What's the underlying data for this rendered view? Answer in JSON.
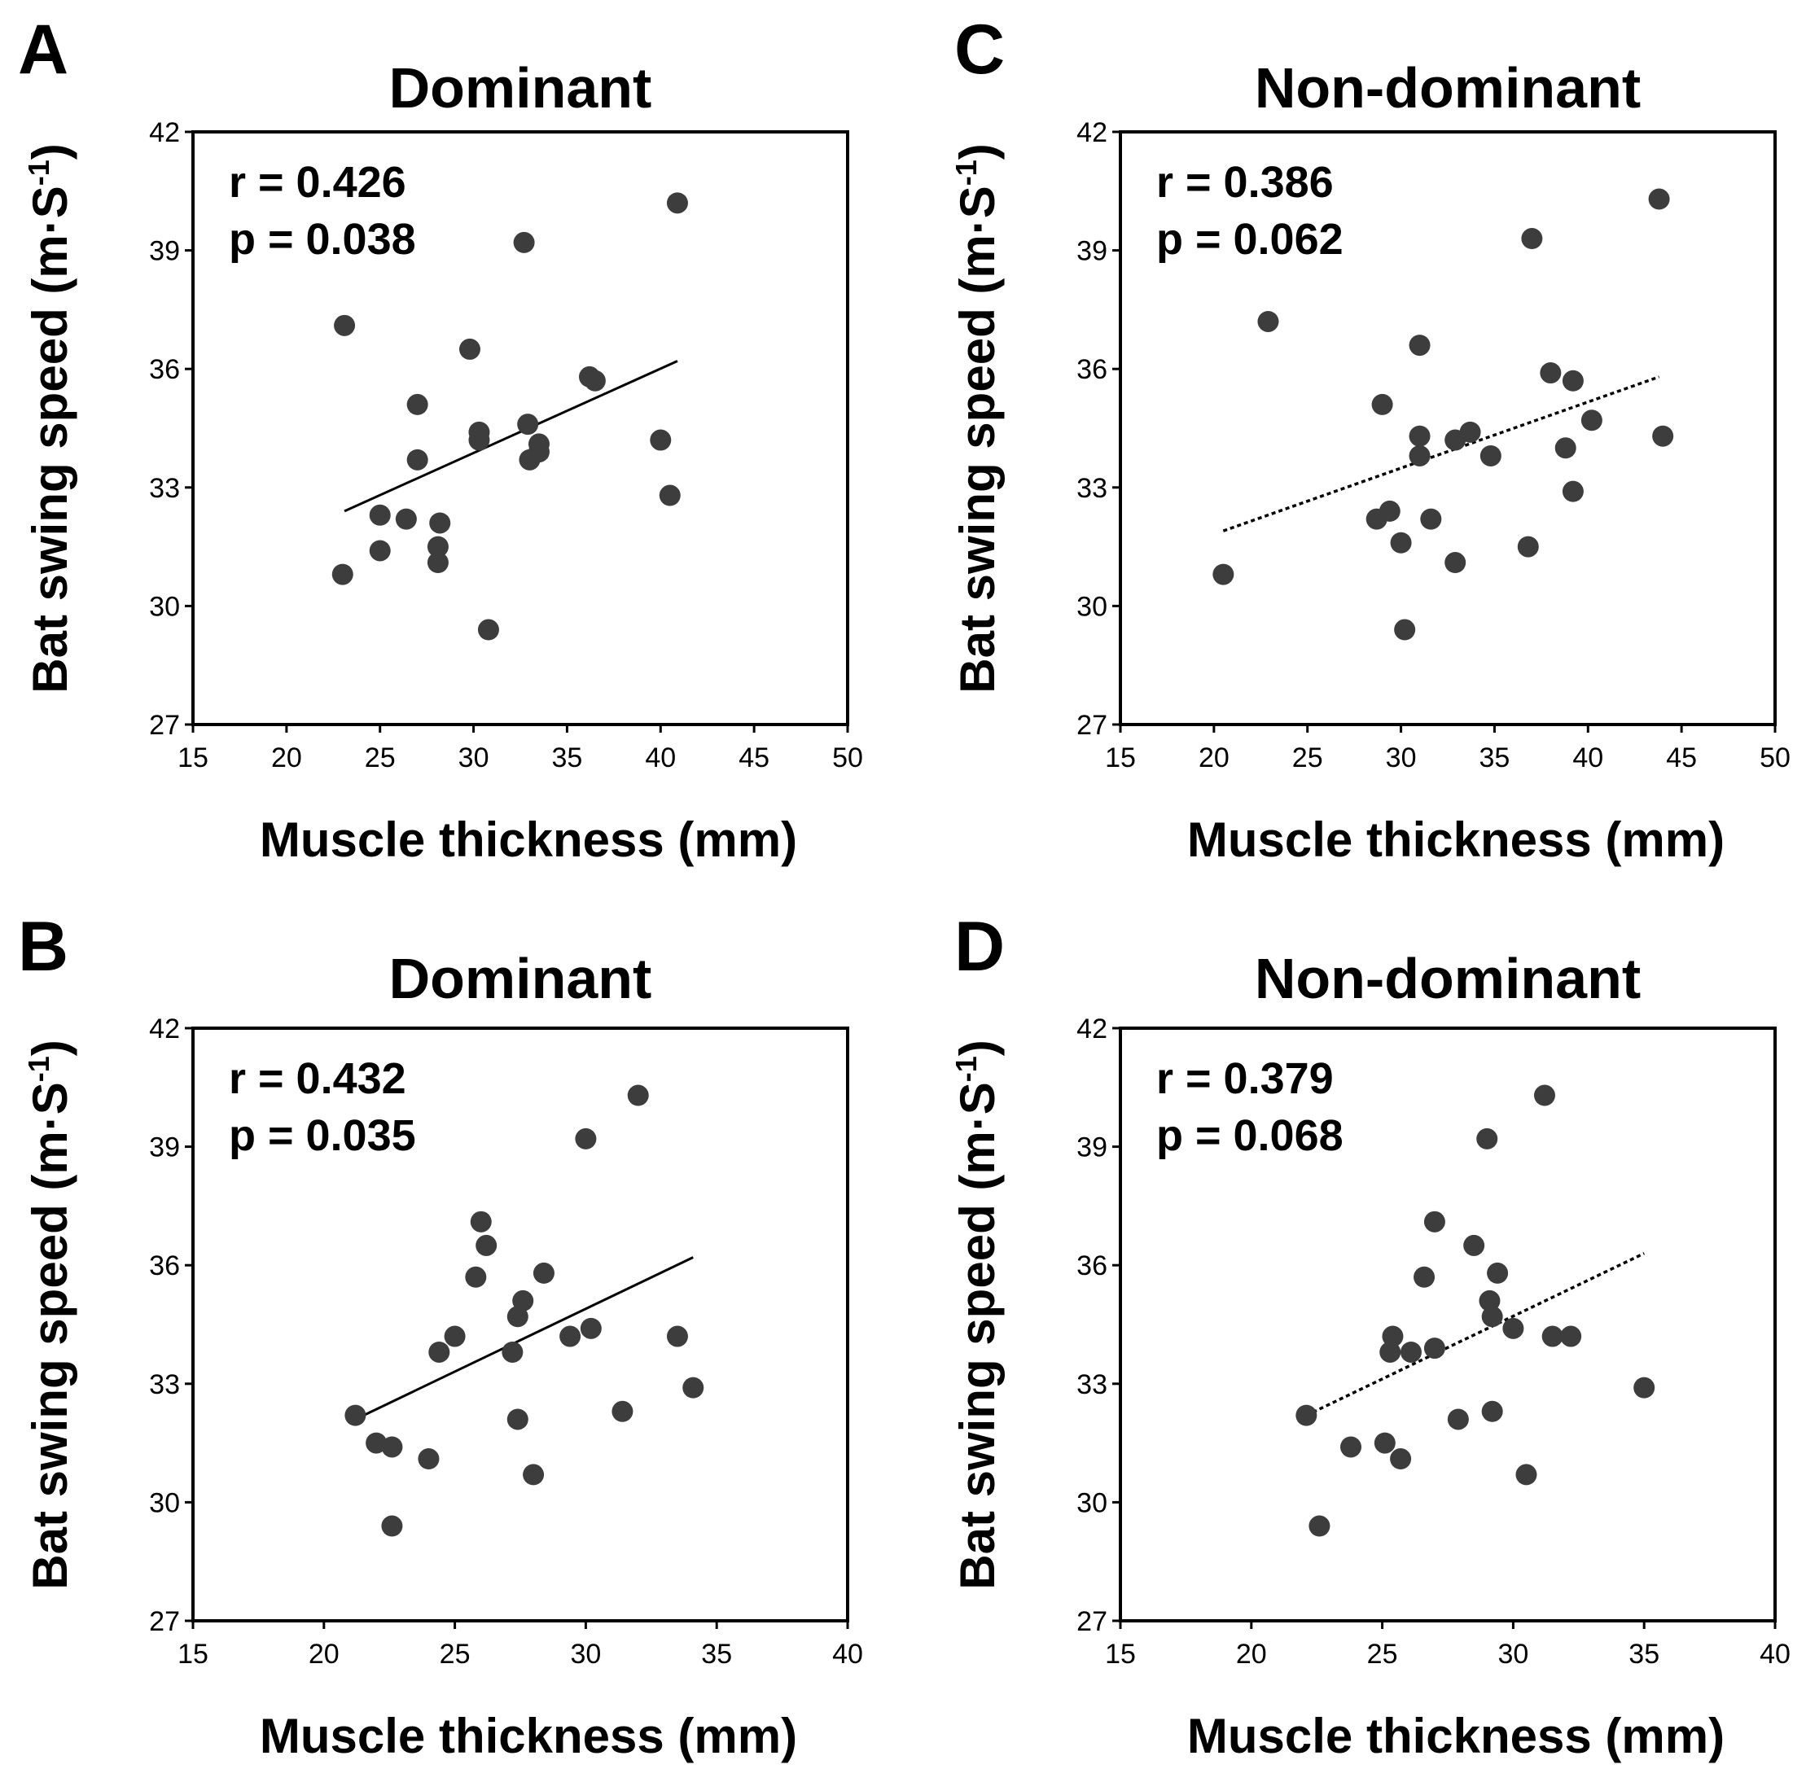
{
  "chart_data": [
    {
      "type": "scatter",
      "panel_label": "A",
      "title": "Dominant",
      "xlabel": "Muscle thickness (mm)",
      "ylabel": "Bat swing speed (m·S-1)",
      "ylabel_main": "Bat swing speed (m",
      "ylabel_mid": "·S",
      "ylabel_sup": "-1",
      "ylabel_close": ")",
      "xlim": [
        15,
        50
      ],
      "ylim": [
        27,
        42
      ],
      "xticks": [
        "15",
        "20",
        "25",
        "30",
        "35",
        "40",
        "45",
        "50"
      ],
      "yticks": [
        "27",
        "30",
        "33",
        "36",
        "39",
        "42"
      ],
      "stats": {
        "r": "r = 0.426",
        "p": "p = 0.038"
      },
      "trendline": {
        "style": "solid",
        "x": [
          23.1,
          40.9
        ],
        "y": [
          32.4,
          36.2
        ]
      },
      "points": [
        {
          "x": 40.9,
          "y": 40.2
        },
        {
          "x": 32.7,
          "y": 39.2
        },
        {
          "x": 23.1,
          "y": 37.1
        },
        {
          "x": 29.8,
          "y": 36.5
        },
        {
          "x": 36.2,
          "y": 35.8
        },
        {
          "x": 36.5,
          "y": 35.7
        },
        {
          "x": 27.0,
          "y": 35.1
        },
        {
          "x": 32.9,
          "y": 34.6
        },
        {
          "x": 30.3,
          "y": 34.4
        },
        {
          "x": 30.3,
          "y": 34.2
        },
        {
          "x": 40.0,
          "y": 34.2
        },
        {
          "x": 33.5,
          "y": 34.1
        },
        {
          "x": 33.5,
          "y": 33.9
        },
        {
          "x": 27.0,
          "y": 33.7
        },
        {
          "x": 33.0,
          "y": 33.7
        },
        {
          "x": 40.5,
          "y": 32.8
        },
        {
          "x": 25.0,
          "y": 32.3
        },
        {
          "x": 26.4,
          "y": 32.2
        },
        {
          "x": 28.2,
          "y": 32.1
        },
        {
          "x": 28.1,
          "y": 31.5
        },
        {
          "x": 25.0,
          "y": 31.4
        },
        {
          "x": 28.1,
          "y": 31.1
        },
        {
          "x": 23.0,
          "y": 30.8
        },
        {
          "x": 30.8,
          "y": 29.4
        }
      ]
    },
    {
      "type": "scatter",
      "panel_label": "B",
      "title": "Dominant",
      "xlabel": "Muscle thickness (mm)",
      "ylabel": "Bat swing speed (m·S-1)",
      "ylabel_main": "Bat swing speed (m",
      "ylabel_mid": "·S",
      "ylabel_sup": "-1",
      "ylabel_close": ")",
      "xlim": [
        15,
        40
      ],
      "ylim": [
        27,
        42
      ],
      "xticks": [
        "15",
        "20",
        "25",
        "30",
        "35",
        "40"
      ],
      "yticks": [
        "27",
        "30",
        "33",
        "36",
        "39",
        "42"
      ],
      "stats": {
        "r": "r = 0.432",
        "p": "p = 0.035"
      },
      "trendline": {
        "style": "solid",
        "x": [
          21.2,
          34.1
        ],
        "y": [
          32.1,
          36.2
        ]
      },
      "points": [
        {
          "x": 32.0,
          "y": 40.3
        },
        {
          "x": 30.0,
          "y": 39.2
        },
        {
          "x": 26.0,
          "y": 37.1
        },
        {
          "x": 26.2,
          "y": 36.5
        },
        {
          "x": 25.8,
          "y": 35.7
        },
        {
          "x": 28.4,
          "y": 35.8
        },
        {
          "x": 27.6,
          "y": 35.1
        },
        {
          "x": 27.4,
          "y": 34.7
        },
        {
          "x": 30.2,
          "y": 34.4
        },
        {
          "x": 25.0,
          "y": 34.2
        },
        {
          "x": 29.4,
          "y": 34.2
        },
        {
          "x": 33.5,
          "y": 34.2
        },
        {
          "x": 24.4,
          "y": 33.8
        },
        {
          "x": 27.2,
          "y": 33.8
        },
        {
          "x": 34.1,
          "y": 32.9
        },
        {
          "x": 31.4,
          "y": 32.3
        },
        {
          "x": 21.2,
          "y": 32.2
        },
        {
          "x": 27.4,
          "y": 32.1
        },
        {
          "x": 22.0,
          "y": 31.5
        },
        {
          "x": 22.6,
          "y": 31.4
        },
        {
          "x": 24.0,
          "y": 31.1
        },
        {
          "x": 28.0,
          "y": 30.7
        },
        {
          "x": 22.6,
          "y": 29.4
        }
      ]
    },
    {
      "type": "scatter",
      "panel_label": "C",
      "title": "Non-dominant",
      "xlabel": "Muscle thickness (mm)",
      "ylabel": "Bat swing speed (m·S-1)",
      "ylabel_main": "Bat swing speed (m",
      "ylabel_mid": "·S",
      "ylabel_sup": "-1",
      "ylabel_close": ")",
      "xlim": [
        15,
        50
      ],
      "ylim": [
        27,
        42
      ],
      "xticks": [
        "15",
        "20",
        "25",
        "30",
        "35",
        "40",
        "45",
        "50"
      ],
      "yticks": [
        "27",
        "30",
        "33",
        "36",
        "39",
        "42"
      ],
      "stats": {
        "r": "r = 0.386",
        "p": "p = 0.062"
      },
      "trendline": {
        "style": "dotted",
        "x": [
          20.5,
          43.8
        ],
        "y": [
          31.9,
          35.8
        ]
      },
      "points": [
        {
          "x": 43.8,
          "y": 40.3
        },
        {
          "x": 37.0,
          "y": 39.3
        },
        {
          "x": 22.9,
          "y": 37.2
        },
        {
          "x": 31.0,
          "y": 36.6
        },
        {
          "x": 38.0,
          "y": 35.9
        },
        {
          "x": 39.2,
          "y": 35.7
        },
        {
          "x": 29.0,
          "y": 35.1
        },
        {
          "x": 40.2,
          "y": 34.7
        },
        {
          "x": 33.7,
          "y": 34.4
        },
        {
          "x": 31.0,
          "y": 34.3
        },
        {
          "x": 32.9,
          "y": 34.2
        },
        {
          "x": 44.0,
          "y": 34.3
        },
        {
          "x": 38.8,
          "y": 34.0
        },
        {
          "x": 31.0,
          "y": 33.8
        },
        {
          "x": 34.8,
          "y": 33.8
        },
        {
          "x": 39.2,
          "y": 32.9
        },
        {
          "x": 29.4,
          "y": 32.4
        },
        {
          "x": 28.7,
          "y": 32.2
        },
        {
          "x": 31.6,
          "y": 32.2
        },
        {
          "x": 30.0,
          "y": 31.6
        },
        {
          "x": 36.8,
          "y": 31.5
        },
        {
          "x": 32.9,
          "y": 31.1
        },
        {
          "x": 20.5,
          "y": 30.8
        },
        {
          "x": 30.2,
          "y": 29.4
        }
      ]
    },
    {
      "type": "scatter",
      "panel_label": "D",
      "title": "Non-dominant",
      "xlabel": "Muscle thickness (mm)",
      "ylabel": "Bat swing speed (m·S-1)",
      "ylabel_main": "Bat swing speed (m",
      "ylabel_mid": "·S",
      "ylabel_sup": "-1",
      "ylabel_close": ")",
      "xlim": [
        15,
        40
      ],
      "ylim": [
        27,
        42
      ],
      "xticks": [
        "15",
        "20",
        "25",
        "30",
        "35",
        "40"
      ],
      "yticks": [
        "27",
        "30",
        "33",
        "36",
        "39",
        "42"
      ],
      "stats": {
        "r": "r = 0.379",
        "p": "p = 0.068"
      },
      "trendline": {
        "style": "dotted",
        "x": [
          22.1,
          35.0
        ],
        "y": [
          32.2,
          36.3
        ]
      },
      "points": [
        {
          "x": 31.2,
          "y": 40.3
        },
        {
          "x": 29.0,
          "y": 39.2
        },
        {
          "x": 27.0,
          "y": 37.1
        },
        {
          "x": 28.5,
          "y": 36.5
        },
        {
          "x": 26.6,
          "y": 35.7
        },
        {
          "x": 29.4,
          "y": 35.8
        },
        {
          "x": 29.1,
          "y": 35.1
        },
        {
          "x": 29.2,
          "y": 34.7
        },
        {
          "x": 30.0,
          "y": 34.4
        },
        {
          "x": 25.4,
          "y": 34.2
        },
        {
          "x": 31.5,
          "y": 34.2
        },
        {
          "x": 32.2,
          "y": 34.2
        },
        {
          "x": 25.3,
          "y": 33.8
        },
        {
          "x": 26.1,
          "y": 33.8
        },
        {
          "x": 27.0,
          "y": 33.9
        },
        {
          "x": 35.0,
          "y": 32.9
        },
        {
          "x": 29.2,
          "y": 32.3
        },
        {
          "x": 22.1,
          "y": 32.2
        },
        {
          "x": 27.9,
          "y": 32.1
        },
        {
          "x": 23.8,
          "y": 31.4
        },
        {
          "x": 25.1,
          "y": 31.5
        },
        {
          "x": 25.7,
          "y": 31.1
        },
        {
          "x": 30.5,
          "y": 30.7
        },
        {
          "x": 22.6,
          "y": 29.4
        }
      ]
    }
  ]
}
